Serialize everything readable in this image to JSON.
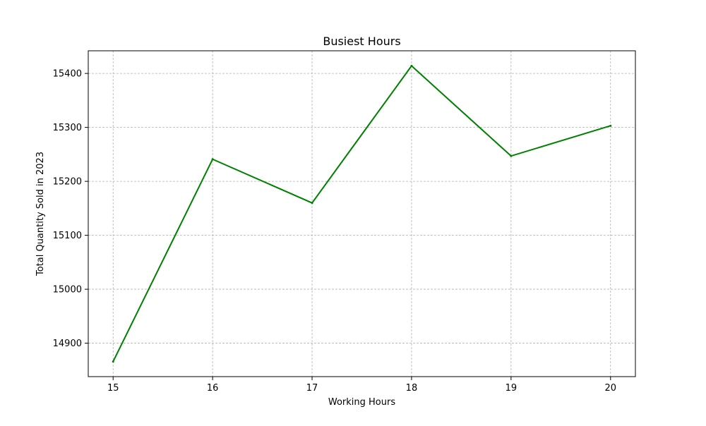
{
  "colors": {
    "line": "#008000",
    "grid": "#b0b0b0",
    "axis": "#000000",
    "background": "#ffffff"
  },
  "chart_data": {
    "type": "line",
    "title": "Busiest Hours",
    "xlabel": "Working Hours",
    "ylabel": "Total Quantity Sold in 2023",
    "grid": true,
    "x": [
      15,
      16,
      17,
      18,
      19,
      20
    ],
    "series": [
      {
        "name": "Total Quantity Sold",
        "values": [
          14866,
          15241,
          15160,
          15414,
          15247,
          15303
        ]
      }
    ],
    "xlim": [
      14.75,
      20.25
    ],
    "ylim": [
      14838,
      15442
    ],
    "xticks": [
      15,
      16,
      17,
      18,
      19,
      20
    ],
    "yticks": [
      14900,
      15000,
      15100,
      15200,
      15300,
      15400
    ]
  }
}
